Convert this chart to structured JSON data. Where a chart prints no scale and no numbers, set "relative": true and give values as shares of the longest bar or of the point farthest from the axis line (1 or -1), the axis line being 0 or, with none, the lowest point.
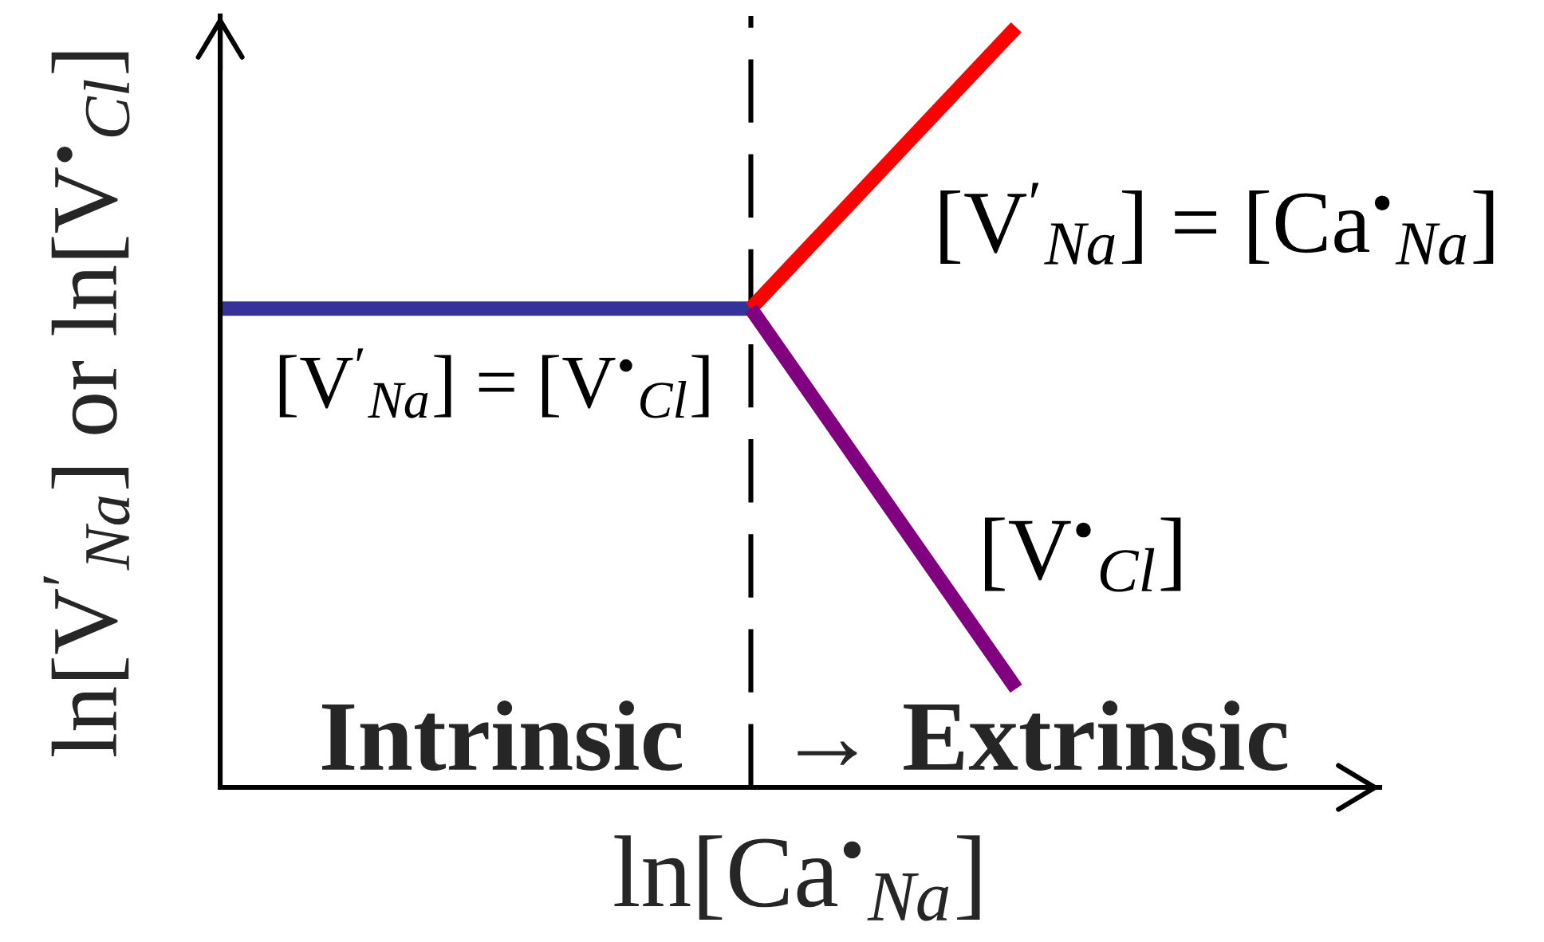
{
  "chart_data": {
    "type": "line",
    "relative": true,
    "xlabel": "ln[Ca$^{•}$$_{Na}$]",
    "ylabel": "ln[V$^{′}$$_{Na}$] or ln[V$^{•}$$_{Cl}$]",
    "categories": [
      null,
      null,
      null,
      null
    ],
    "series": [
      {
        "name": "[V$^{′}$$_{Na}$] = [V$^{•}$$_{Cl}$]",
        "color": "#333399",
        "values": [
          0.63,
          0.63,
          0.63,
          null
        ]
      },
      {
        "name": "[V$^{′}$$_{Na}$] = [Ca$^{•}$$_{Na}$]",
        "color": "#ff0000",
        "values": [
          null,
          null,
          0.63,
          1.0
        ]
      },
      {
        "name": "[V$^{•}$$_{Cl}$]",
        "color": "#800080",
        "values": [
          null,
          null,
          0.63,
          0.13
        ]
      }
    ],
    "annotations": [
      "Intrinsic",
      "→ Extrinsic"
    ]
  }
}
